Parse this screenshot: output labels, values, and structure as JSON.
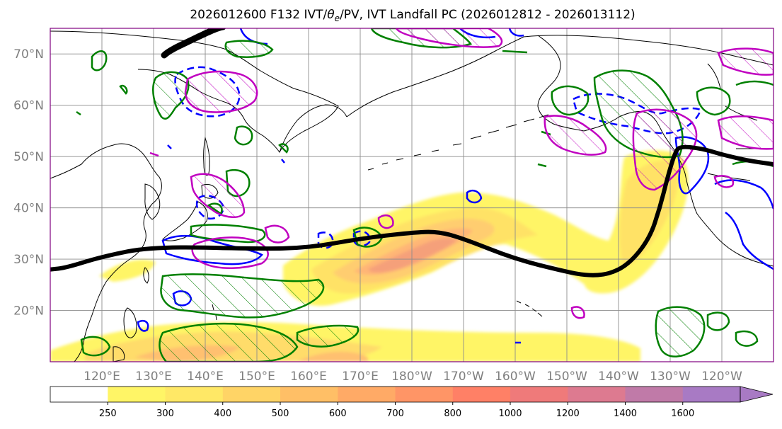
{
  "title": "2026012600 F132 IVT/θe/PV, IVT Landfall PC (2026012812 - 2026013112)",
  "title_parts": {
    "pre": "2026012600 F132 IVT/",
    "theta": "θ",
    "sub": "e",
    "post": "/PV, IVT Landfall PC (2026012812 - 2026013112)"
  },
  "map": {
    "lon_range": [
      110,
      250
    ],
    "lat_range": [
      10,
      75
    ],
    "lat_ticks": [
      "20°N",
      "30°N",
      "40°N",
      "50°N",
      "60°N",
      "70°N"
    ],
    "lon_ticks": [
      "120°E",
      "130°E",
      "140°E",
      "150°E",
      "160°E",
      "170°E",
      "180°W",
      "170°W",
      "160°W",
      "150°W",
      "140°W",
      "130°W",
      "120°W"
    ],
    "grid_lons": [
      120,
      130,
      140,
      150,
      160,
      170,
      180,
      190,
      200,
      210,
      220,
      230,
      240
    ],
    "grid_lats": [
      20,
      30,
      40,
      50,
      60,
      70
    ],
    "landfall_pc_line": [
      [
        110,
        28
      ],
      [
        113,
        28.3
      ],
      [
        120,
        30.5
      ],
      [
        130,
        32.5
      ],
      [
        150,
        32
      ],
      [
        160,
        32.2
      ],
      [
        170,
        34
      ],
      [
        180,
        35.2
      ],
      [
        185,
        35.4
      ],
      [
        190,
        34
      ],
      [
        200,
        30
      ],
      [
        210,
        27.5
      ],
      [
        214,
        26.8
      ],
      [
        218,
        27
      ],
      [
        222,
        29
      ],
      [
        226,
        34
      ],
      [
        228,
        40
      ],
      [
        229.5,
        46
      ],
      [
        231,
        51
      ],
      [
        232,
        52
      ],
      [
        236,
        51.6
      ],
      [
        240,
        50.4
      ],
      [
        245,
        49.2
      ],
      [
        250,
        48.5
      ]
    ],
    "contour_colors": {
      "ivt_fill": "#fff566",
      "pv": "#008000",
      "theta_e_pos": "#c000c0",
      "theta_e_neg": "#0000ff",
      "landfall": "#000000"
    }
  },
  "colorbar": {
    "labels": [
      "250",
      "300",
      "400",
      "500",
      "600",
      "700",
      "800",
      "1000",
      "1200",
      "1400",
      "1600"
    ],
    "colors": [
      "#ffffff",
      "#fff566",
      "#ffe866",
      "#ffd466",
      "#ffbf66",
      "#ffaa66",
      "#ff9566",
      "#ff8066",
      "#ef7a7a",
      "#dd7a90",
      "#c07aa8",
      "#a87ac4"
    ]
  }
}
